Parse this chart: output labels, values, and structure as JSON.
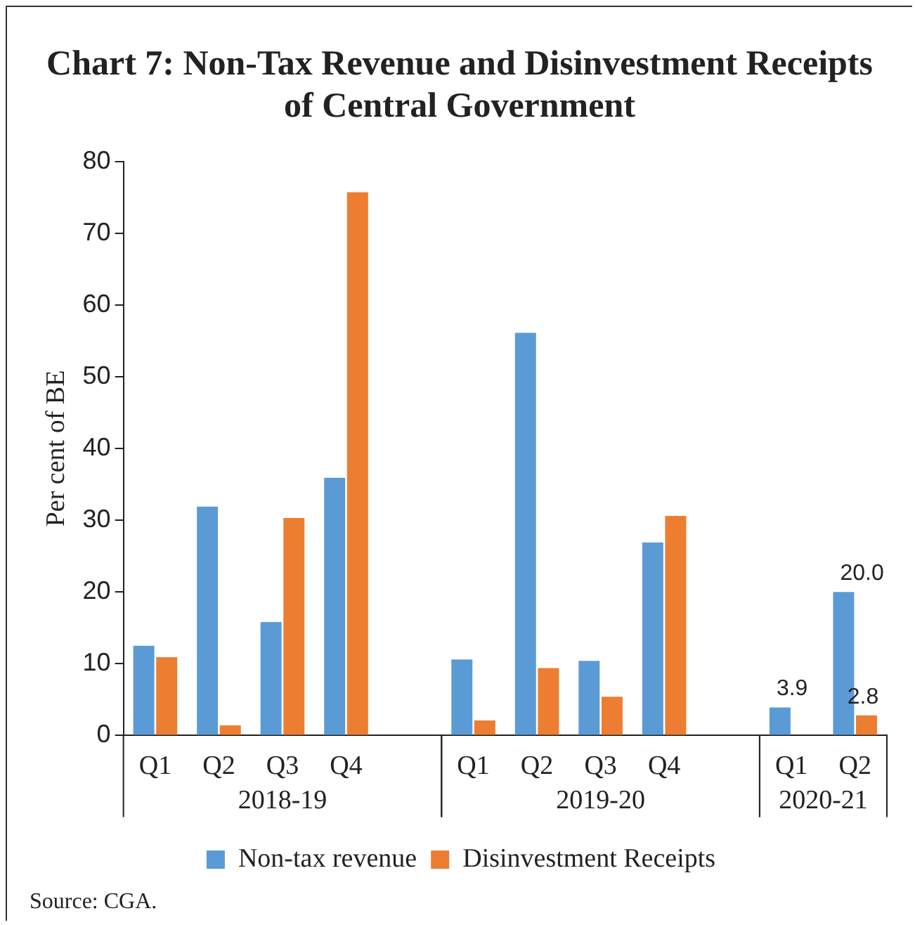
{
  "chart_data": {
    "type": "bar",
    "title": "Chart 7: Non-Tax Revenue and Disinvestment Receipts of Central Government",
    "ylabel": "Per cent of BE",
    "categories": [
      "Q1",
      "Q2",
      "Q3",
      "Q4",
      null,
      "Q1",
      "Q2",
      "Q3",
      "Q4",
      null,
      "Q1",
      "Q2"
    ],
    "series": [
      {
        "name": "Non-tax revenue",
        "color": "#5b9bd5",
        "values": [
          12.5,
          31.9,
          15.8,
          35.9,
          null,
          10.6,
          56.1,
          10.4,
          26.9,
          null,
          3.9,
          20.0
        ],
        "value_labels": [
          null,
          null,
          null,
          null,
          null,
          null,
          null,
          null,
          null,
          null,
          "3.9",
          "20.0"
        ]
      },
      {
        "name": "Disinvestment Receipts",
        "color": "#ed7d31",
        "values": [
          10.9,
          1.4,
          30.3,
          75.7,
          null,
          2.1,
          9.4,
          5.4,
          30.6,
          null,
          null,
          2.8
        ],
        "value_labels": [
          null,
          null,
          null,
          null,
          null,
          null,
          null,
          null,
          null,
          null,
          null,
          "2.8"
        ]
      }
    ],
    "ylim": [
      0,
      80
    ],
    "yticks": [
      0,
      10,
      20,
      30,
      40,
      50,
      60,
      70,
      80
    ],
    "legend": "bottom",
    "annotations": [
      "2018-19",
      "2019-20",
      "2020-21",
      "Source: CGA."
    ]
  }
}
